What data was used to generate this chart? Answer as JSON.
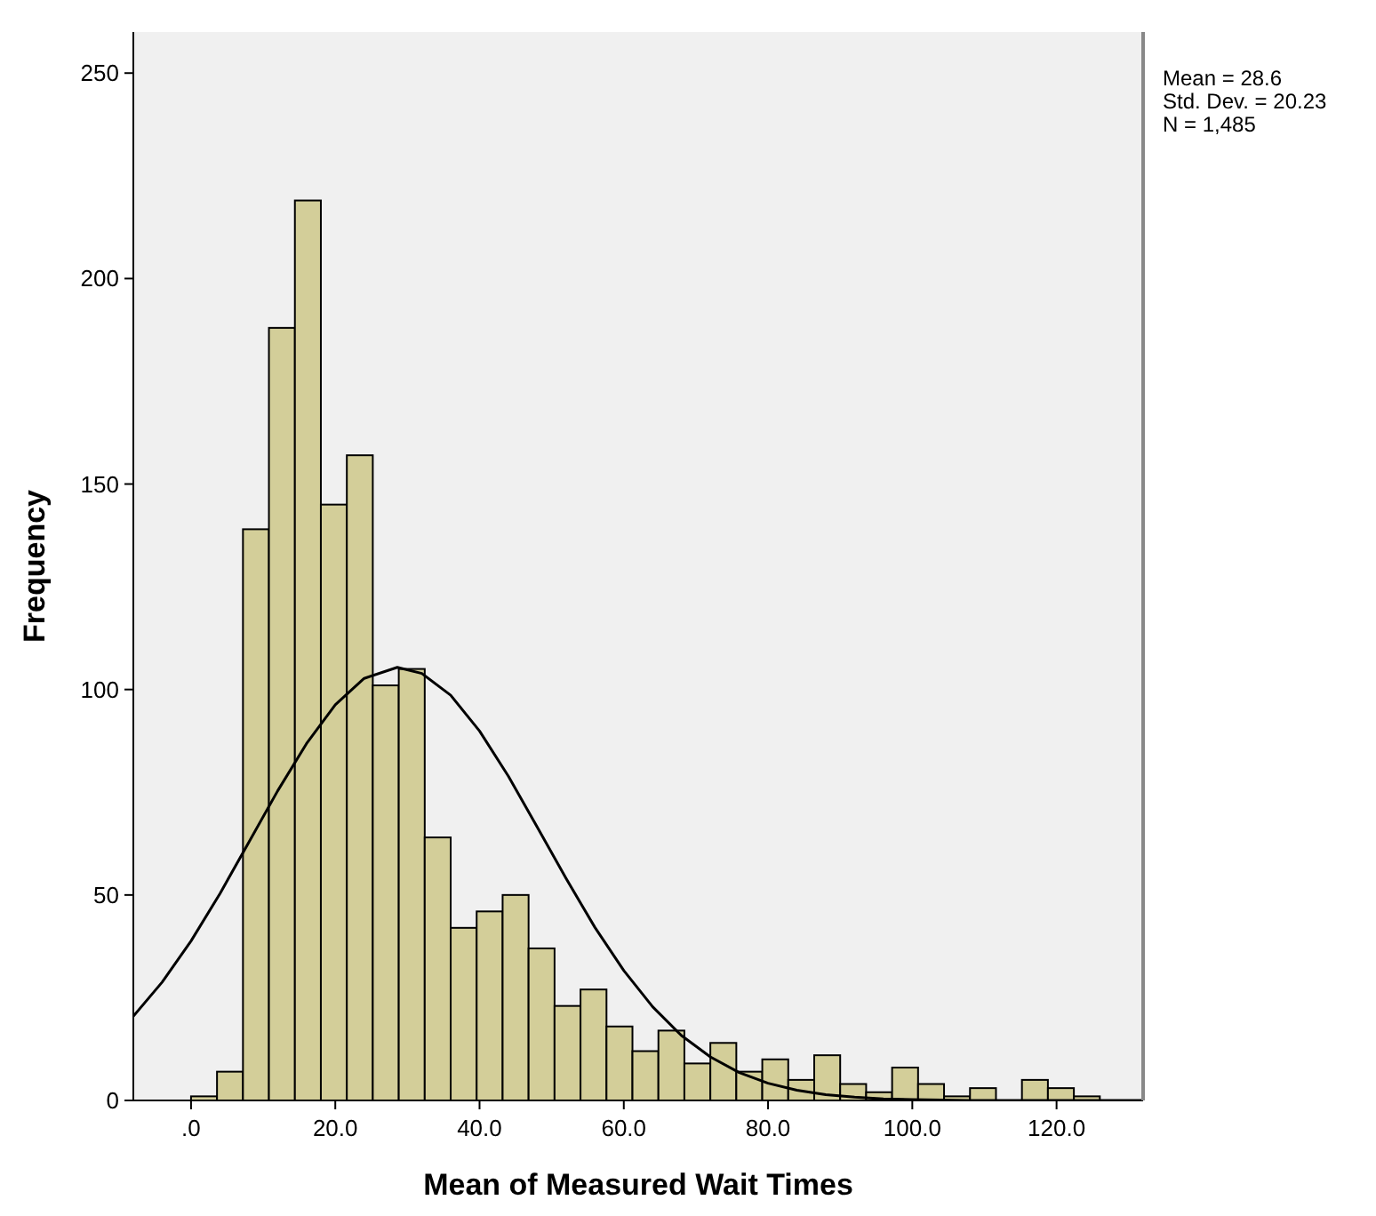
{
  "chart_data": {
    "type": "histogram",
    "xlabel": "Mean of Measured Wait Times",
    "ylabel": "Frequency",
    "bins": [
      0,
      3.6,
      7.2,
      10.8,
      14.4,
      18,
      21.6,
      25.2,
      28.8,
      32.4,
      36,
      39.6,
      43.2,
      46.8,
      50.4,
      54,
      57.6,
      61.2,
      64.8,
      68.4,
      72,
      75.6,
      79.2,
      82.8,
      86.4,
      90,
      93.6,
      97.2,
      100.8,
      104.4,
      108,
      111.6,
      115.2,
      118.8,
      122.4,
      126
    ],
    "values": [
      1,
      7,
      139,
      188,
      219,
      145,
      157,
      101,
      105,
      64,
      42,
      46,
      50,
      37,
      23,
      27,
      18,
      12,
      17,
      9,
      14,
      7,
      10,
      5,
      11,
      4,
      2,
      8,
      4,
      1,
      3,
      0,
      5,
      3,
      1
    ],
    "color": "#d3ce99",
    "series": [
      {
        "type": "line",
        "color": "#000000",
        "x": [
          -8,
          -4,
          0,
          4,
          8,
          12,
          16,
          20,
          24,
          28.6,
          32,
          36,
          40,
          44,
          48,
          52,
          56,
          60,
          64,
          68,
          72,
          76,
          80,
          84,
          88,
          92,
          96,
          100,
          104,
          108,
          112,
          116,
          120,
          124,
          128,
          132
        ],
        "values": [
          20.5,
          28.8,
          38.8,
          50.3,
          62.8,
          75.3,
          86.8,
          96.3,
          102.7,
          105.4,
          103.9,
          98.6,
          89.9,
          78.9,
          66.5,
          54,
          42.1,
          31.6,
          22.8,
          15.8,
          10.6,
          6.8,
          4.2,
          2.5,
          1.4,
          0.8,
          0.4,
          0.2,
          0.1,
          0,
          0,
          0,
          0,
          0,
          0,
          0
        ]
      }
    ],
    "xlim": [
      -8,
      132
    ],
    "ylim": [
      0,
      260
    ],
    "xticks": [
      {
        "value": 0,
        "label": ".0"
      },
      {
        "value": 20,
        "label": "20.0"
      },
      {
        "value": 40,
        "label": "40.0"
      },
      {
        "value": 60,
        "label": "60.0"
      },
      {
        "value": 80,
        "label": "80.0"
      },
      {
        "value": 100,
        "label": "100.0"
      },
      {
        "value": 120,
        "label": "120.0"
      }
    ],
    "yticks": [
      0,
      50,
      100,
      150,
      200,
      250
    ],
    "grid": false,
    "annotations": [
      "Mean = 28.6",
      "Std. Dev. = 20.23",
      "N = 1,485"
    ]
  }
}
